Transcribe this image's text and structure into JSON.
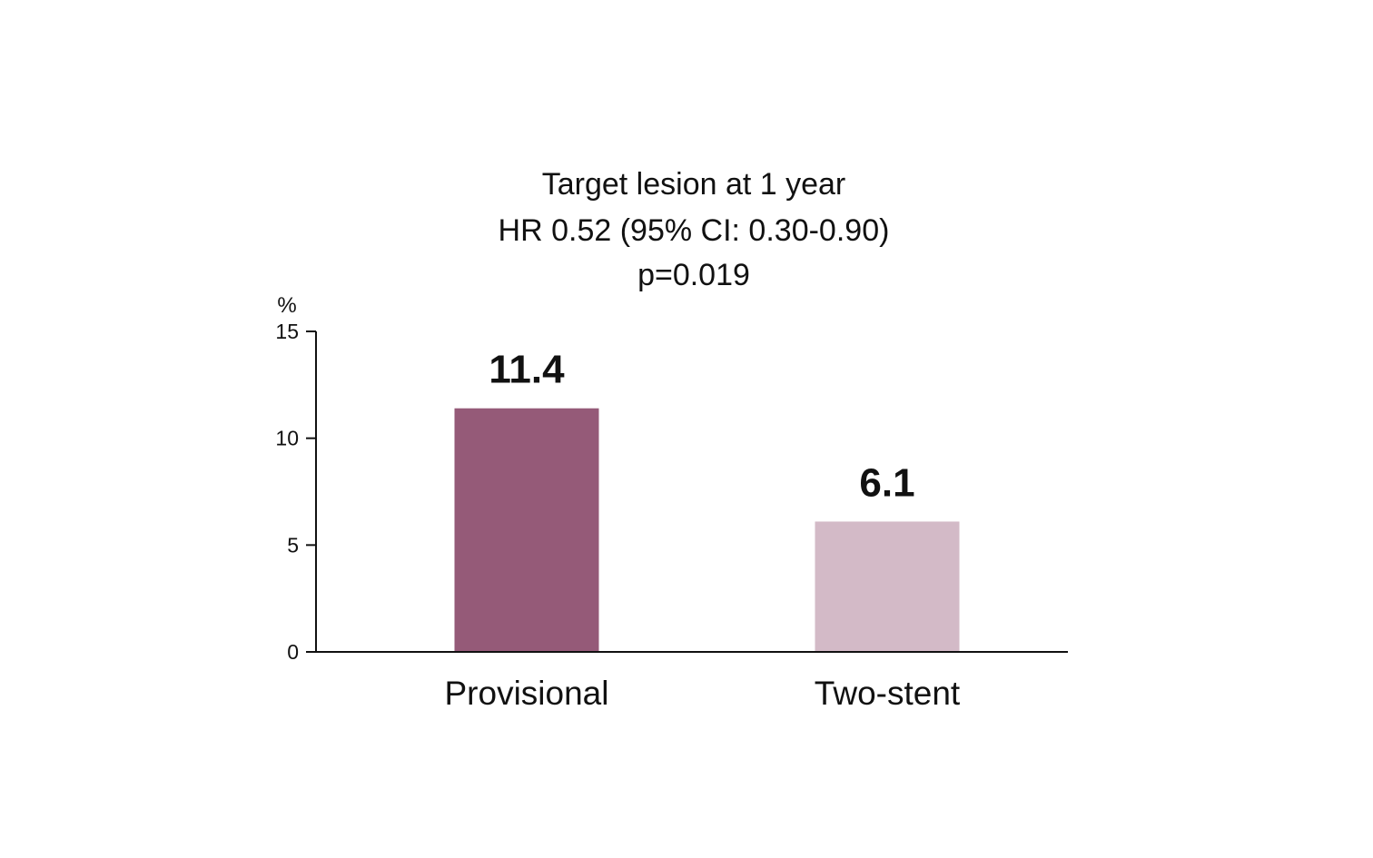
{
  "chart_data": {
    "type": "bar",
    "title_lines": [
      "Target lesion at 1 year",
      "HR 0.52 (95% CI: 0.30-0.90)",
      "p=0.019"
    ],
    "ylabel": "%",
    "xlabel": "",
    "categories": [
      "Provisional",
      "Two-stent"
    ],
    "values": [
      11.4,
      6.1
    ],
    "value_labels": [
      "11.4",
      "6.1"
    ],
    "bar_colors": [
      "#955a78",
      "#d3bac7"
    ],
    "ylim": [
      0,
      15
    ],
    "yticks": [
      0,
      5,
      10,
      15
    ],
    "ytick_labels": [
      "0",
      "5",
      "10",
      "15"
    ],
    "grid": false,
    "legend": "none"
  }
}
